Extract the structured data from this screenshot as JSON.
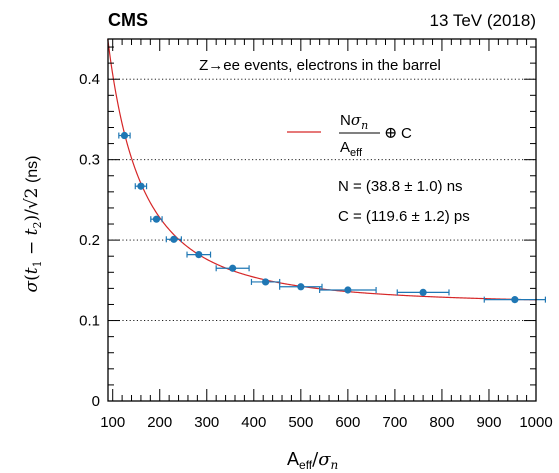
{
  "chart_data": {
    "type": "scatter",
    "experiment": "CMS",
    "energy_label": "13 TeV (2018)",
    "annotation": "Z→ee events, electrons in the barrel",
    "xlim": [
      90,
      1000
    ],
    "ylim": [
      0,
      0.45
    ],
    "x_ticks": [
      100,
      200,
      300,
      400,
      500,
      600,
      700,
      800,
      900,
      1000
    ],
    "y_ticks": [
      0,
      0.1,
      0.2,
      0.3,
      0.4
    ],
    "grid": "dotted horizontal at 0.1, 0.2, 0.3, 0.4",
    "legend_placement": "top-right",
    "fit": {
      "name": "N/A_eff ⊕ C",
      "color": "#d62728",
      "N_label": "N = (38.8 ± 1.0) ns",
      "C_label": "C = (119.6 ± 1.2) ps",
      "N": 38.8,
      "C_ns": 0.1196
    },
    "marker_color": "#1f77b4",
    "points": [
      {
        "x": 125,
        "xerr": 12,
        "y": 0.33,
        "yerr": 0.004
      },
      {
        "x": 160,
        "xerr": 12,
        "y": 0.267,
        "yerr": 0.004
      },
      {
        "x": 193,
        "xerr": 12,
        "y": 0.226,
        "yerr": 0.004
      },
      {
        "x": 230,
        "xerr": 16,
        "y": 0.201,
        "yerr": 0.003
      },
      {
        "x": 283,
        "xerr": 25,
        "y": 0.182,
        "yerr": 0.003
      },
      {
        "x": 355,
        "xerr": 35,
        "y": 0.165,
        "yerr": 0.003
      },
      {
        "x": 425,
        "xerr": 30,
        "y": 0.148,
        "yerr": 0.003
      },
      {
        "x": 500,
        "xerr": 45,
        "y": 0.142,
        "yerr": 0.003
      },
      {
        "x": 600,
        "xerr": 60,
        "y": 0.138,
        "yerr": 0.003
      },
      {
        "x": 760,
        "xerr": 55,
        "y": 0.135,
        "yerr": 0.003
      },
      {
        "x": 955,
        "xerr": 65,
        "y": 0.126,
        "yerr": 0.003
      }
    ]
  }
}
